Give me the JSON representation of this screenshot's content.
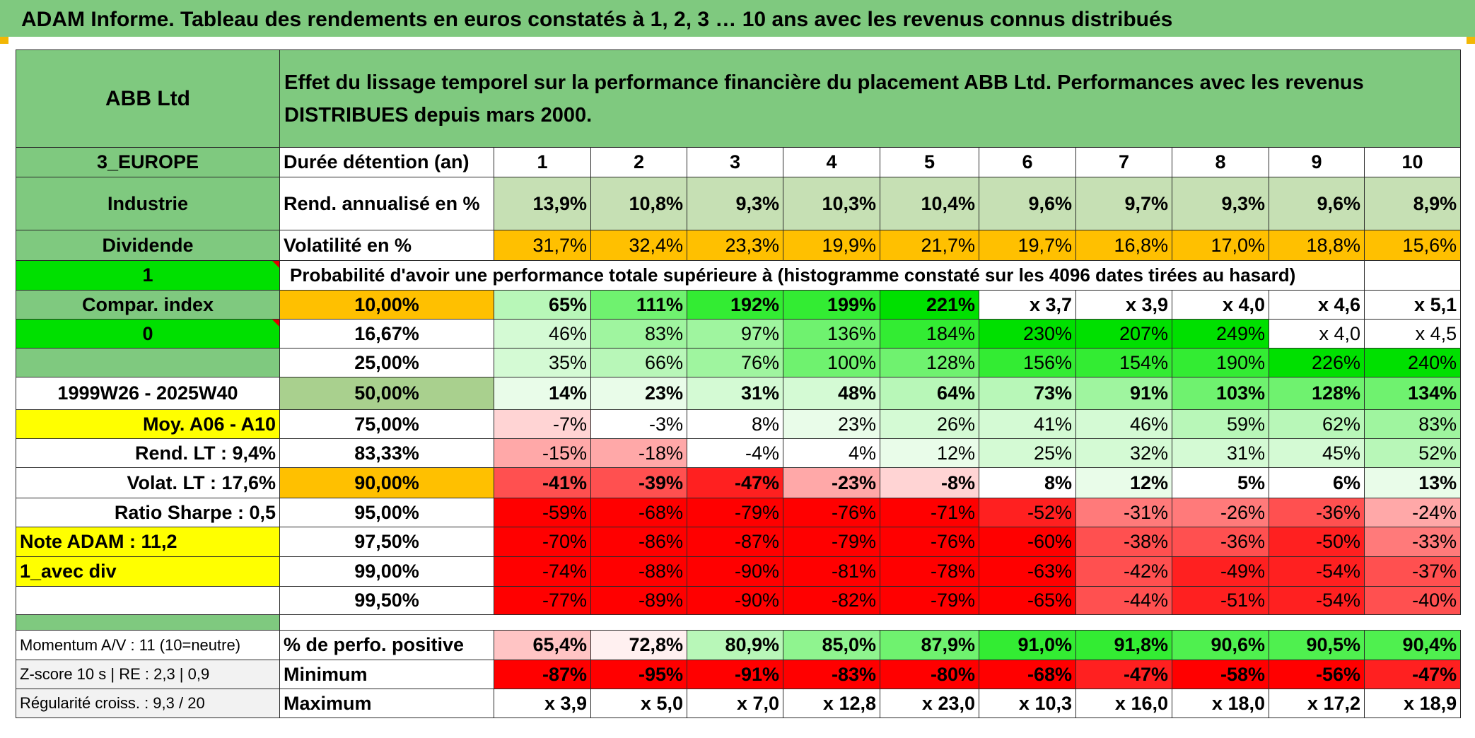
{
  "header": {
    "title": "ADAM Informe. Tableau des rendements en euros constatés à 1, 2, 3 … 10 ans avec les revenus connus distribués"
  },
  "side": {
    "name": "ABB Ltd",
    "region": "3_EUROPE",
    "sector": "Industrie",
    "dividend_label": "Dividende",
    "flag1": "1",
    "compar_index": "Compar. index",
    "flag0": "0",
    "period": "1999W26 - 2025W40",
    "moy": "Moy. A06 - A10",
    "rend_lt": "Rend. LT :   9,4%",
    "volat_lt": "Volat. LT :   17,6%",
    "sharpe": "Ratio Sharpe :   0,5",
    "note": "Note ADAM : 11,2",
    "avec_div": "1_avec div"
  },
  "description": "Effet du lissage temporel sur la performance financière du placement ABB Ltd. Performances avec les revenus DISTRIBUES depuis mars 2000.",
  "labels": {
    "duree": "Durée détention (an)",
    "rend": "Rend. annualisé en %",
    "volat": "Volatilité en %",
    "proba": "Probabilité d'avoir une performance totale supérieure à (histogramme constaté sur les 4096 dates tirées au hasard)",
    "pct_pos": "% de perfo. positive",
    "min": "Minimum",
    "max": "Maximum",
    "momentum": "Momentum A/V : 11 (10=neutre)",
    "zscore": "Z-score 10 s | RE : 2,3 | 0,9",
    "regul": "Régularité croiss. : 9,3 / 20"
  },
  "years": [
    "1",
    "2",
    "3",
    "4",
    "5",
    "6",
    "7",
    "8",
    "9",
    "10"
  ],
  "rend": [
    "13,9%",
    "10,8%",
    "9,3%",
    "10,3%",
    "10,4%",
    "9,6%",
    "9,7%",
    "9,3%",
    "9,6%",
    "8,9%"
  ],
  "volat": [
    "31,7%",
    "32,4%",
    "23,3%",
    "19,9%",
    "21,7%",
    "19,7%",
    "16,8%",
    "17,0%",
    "18,8%",
    "15,6%"
  ],
  "quantile_rows": [
    {
      "p": "10,00%",
      "v": [
        "65%",
        "111%",
        "192%",
        "199%",
        "221%",
        "x 3,7",
        "x 3,9",
        "x 4,0",
        "x 4,6",
        "x 5,1"
      ]
    },
    {
      "p": "16,67%",
      "v": [
        "46%",
        "83%",
        "97%",
        "136%",
        "184%",
        "230%",
        "207%",
        "249%",
        "x 4,0",
        "x 4,5"
      ]
    },
    {
      "p": "25,00%",
      "v": [
        "35%",
        "66%",
        "76%",
        "100%",
        "128%",
        "156%",
        "154%",
        "190%",
        "226%",
        "240%"
      ]
    },
    {
      "p": "50,00%",
      "v": [
        "14%",
        "23%",
        "31%",
        "48%",
        "64%",
        "73%",
        "91%",
        "103%",
        "128%",
        "134%"
      ]
    },
    {
      "p": "75,00%",
      "v": [
        "-7%",
        "-3%",
        "8%",
        "23%",
        "26%",
        "41%",
        "46%",
        "59%",
        "62%",
        "83%"
      ]
    },
    {
      "p": "83,33%",
      "v": [
        "-15%",
        "-18%",
        "-4%",
        "4%",
        "12%",
        "25%",
        "32%",
        "31%",
        "45%",
        "52%"
      ]
    },
    {
      "p": "90,00%",
      "v": [
        "-41%",
        "-39%",
        "-47%",
        "-23%",
        "-8%",
        "8%",
        "12%",
        "5%",
        "6%",
        "13%"
      ]
    },
    {
      "p": "95,00%",
      "v": [
        "-59%",
        "-68%",
        "-79%",
        "-76%",
        "-71%",
        "-52%",
        "-31%",
        "-26%",
        "-36%",
        "-24%"
      ]
    },
    {
      "p": "97,50%",
      "v": [
        "-70%",
        "-86%",
        "-87%",
        "-79%",
        "-76%",
        "-60%",
        "-38%",
        "-36%",
        "-50%",
        "-33%"
      ]
    },
    {
      "p": "99,00%",
      "v": [
        "-74%",
        "-88%",
        "-90%",
        "-81%",
        "-78%",
        "-63%",
        "-42%",
        "-49%",
        "-54%",
        "-37%"
      ]
    },
    {
      "p": "99,50%",
      "v": [
        "-77%",
        "-89%",
        "-90%",
        "-82%",
        "-79%",
        "-65%",
        "-44%",
        "-51%",
        "-54%",
        "-40%"
      ]
    }
  ],
  "pct_pos": [
    "65,4%",
    "72,8%",
    "80,9%",
    "85,0%",
    "87,9%",
    "91,0%",
    "91,8%",
    "90,6%",
    "90,5%",
    "90,4%"
  ],
  "minimum": [
    "-87%",
    "-95%",
    "-91%",
    "-83%",
    "-80%",
    "-68%",
    "-47%",
    "-58%",
    "-56%",
    "-47%"
  ],
  "maximum": [
    "x 3,9",
    "x 5,0",
    "x 7,0",
    "x 12,8",
    "x 23,0",
    "x 10,3",
    "x 16,0",
    "x 18,0",
    "x 17,2",
    "x 18,9"
  ],
  "colors": {
    "header_green": "#7fc97f",
    "bright_green": "#00e000",
    "yellow": "#ffff00",
    "orange": "#ffc000",
    "light_green": "#c6e0b4",
    "red_text": "#e00000"
  }
}
